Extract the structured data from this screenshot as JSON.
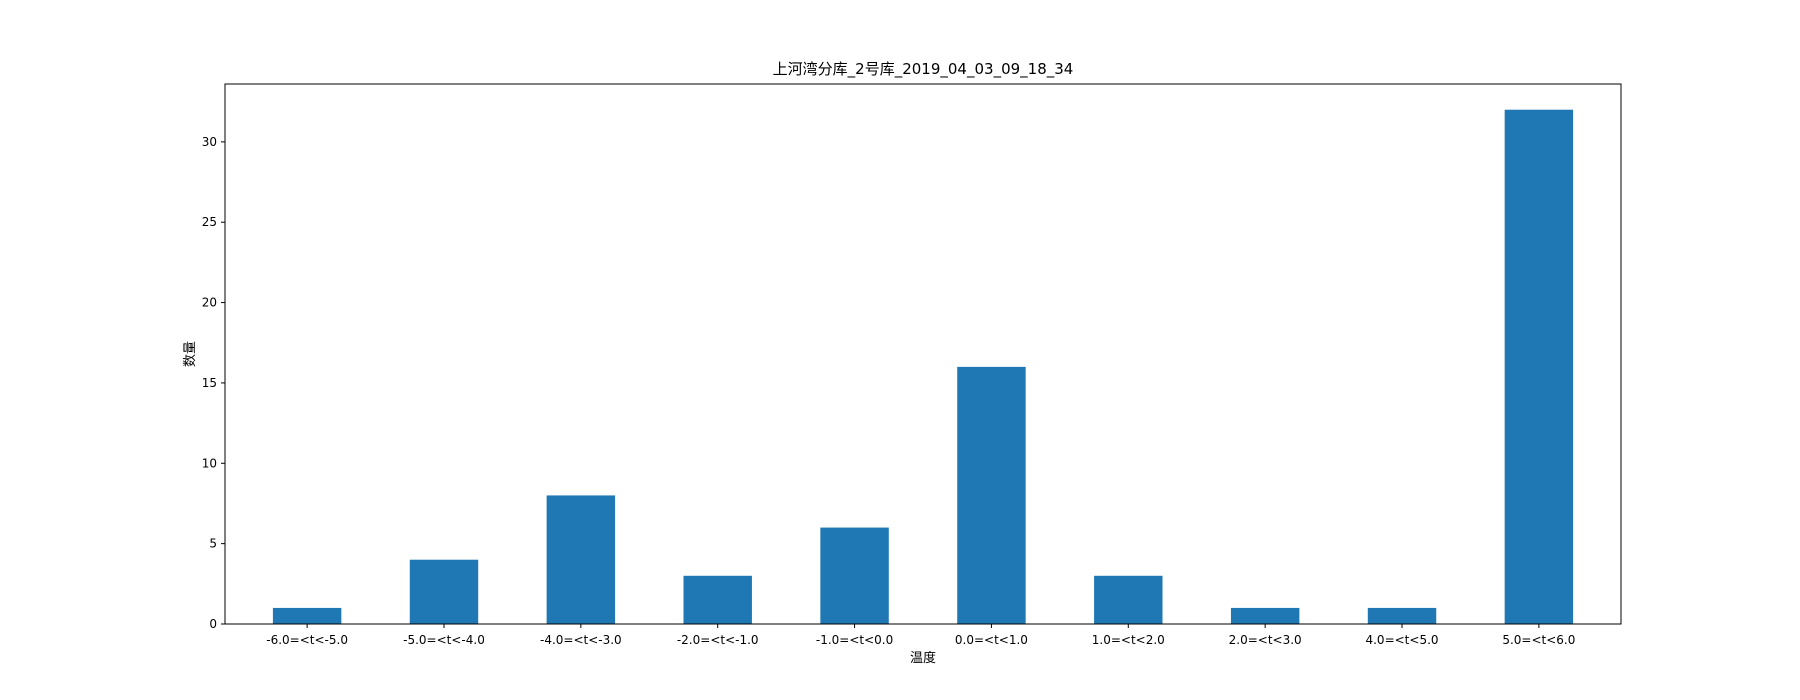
{
  "chart_data": {
    "type": "bar",
    "title": "上河湾分库_2号库_2019_04_03_09_18_34",
    "xlabel": "温度",
    "ylabel": "数量",
    "categories": [
      "-6.0=<t<-5.0",
      "-5.0=<t<-4.0",
      "-4.0=<t<-3.0",
      "-2.0=<t<-1.0",
      "-1.0=<t<0.0",
      "0.0=<t<1.0",
      "1.0=<t<2.0",
      "2.0=<t<3.0",
      "4.0=<t<5.0",
      "5.0=<t<6.0"
    ],
    "values": [
      1,
      4,
      8,
      3,
      6,
      16,
      3,
      1,
      1,
      32
    ],
    "yticks": [
      0,
      5,
      10,
      15,
      20,
      25,
      30
    ],
    "ylim": [
      0,
      33.6
    ],
    "grid": false,
    "bar_color": "#1f77b4"
  }
}
